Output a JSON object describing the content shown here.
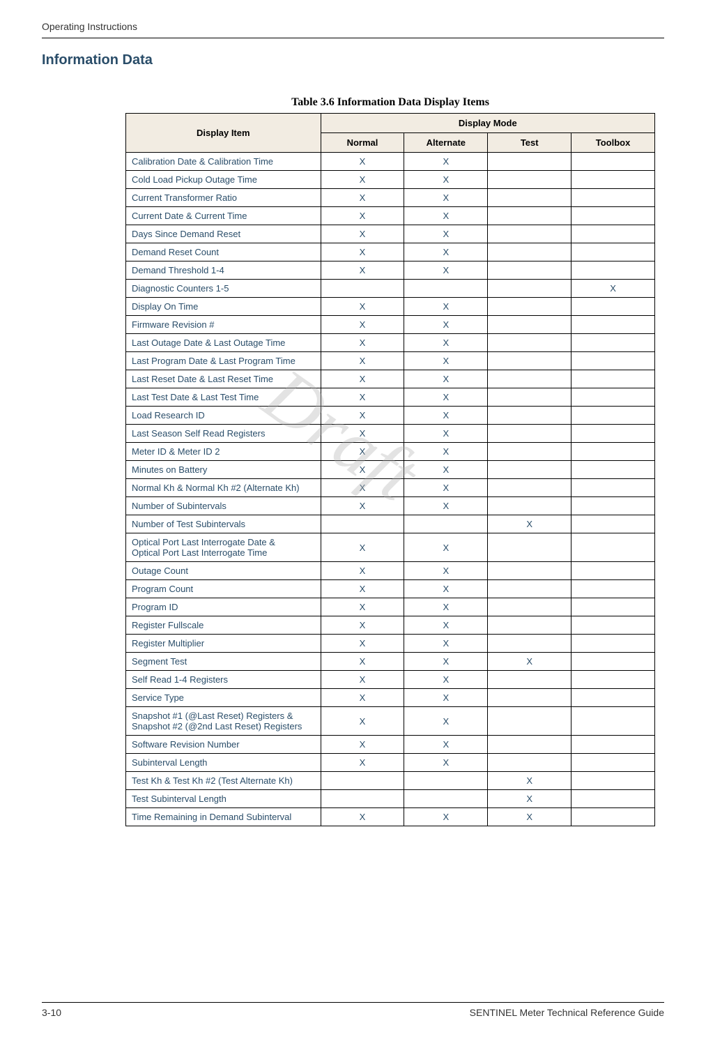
{
  "header": {
    "running_head": "Operating Instructions"
  },
  "section": {
    "heading": "Information Data"
  },
  "table": {
    "title": "Table 3.6 Information Data Display Items",
    "headers": {
      "item": "Display Item",
      "mode_group": "Display Mode",
      "modes": [
        "Normal",
        "Alternate",
        "Test",
        "Toolbox"
      ]
    },
    "rows": [
      {
        "label": "Calibration Date & Calibration Time",
        "marks": [
          "X",
          "X",
          "",
          ""
        ]
      },
      {
        "label": "Cold Load Pickup Outage Time",
        "marks": [
          "X",
          "X",
          "",
          ""
        ]
      },
      {
        "label": "Current Transformer Ratio",
        "marks": [
          "X",
          "X",
          "",
          ""
        ]
      },
      {
        "label": "Current Date & Current Time",
        "marks": [
          "X",
          "X",
          "",
          ""
        ]
      },
      {
        "label": "Days Since Demand Reset",
        "marks": [
          "X",
          "X",
          "",
          ""
        ]
      },
      {
        "label": "Demand Reset Count",
        "marks": [
          "X",
          "X",
          "",
          ""
        ]
      },
      {
        "label": "Demand Threshold 1-4",
        "marks": [
          "X",
          "X",
          "",
          ""
        ]
      },
      {
        "label": "Diagnostic Counters 1-5",
        "marks": [
          "",
          "",
          "",
          "X"
        ]
      },
      {
        "label": "Display On Time",
        "marks": [
          "X",
          "X",
          "",
          ""
        ]
      },
      {
        "label": "Firmware Revision #",
        "marks": [
          "X",
          "X",
          "",
          ""
        ]
      },
      {
        "label": "Last Outage Date & Last Outage Time",
        "marks": [
          "X",
          "X",
          "",
          ""
        ]
      },
      {
        "label": "Last Program Date & Last Program Time",
        "marks": [
          "X",
          "X",
          "",
          ""
        ]
      },
      {
        "label": "Last Reset Date & Last Reset Time",
        "marks": [
          "X",
          "X",
          "",
          ""
        ]
      },
      {
        "label": "Last Test Date & Last Test Time",
        "marks": [
          "X",
          "X",
          "",
          ""
        ]
      },
      {
        "label": "Load Research ID",
        "marks": [
          "X",
          "X",
          "",
          ""
        ]
      },
      {
        "label": "Last Season Self Read Registers",
        "marks": [
          "X",
          "X",
          "",
          ""
        ]
      },
      {
        "label": "Meter ID & Meter ID 2",
        "marks": [
          "X",
          "X",
          "",
          ""
        ]
      },
      {
        "label": "Minutes on Battery",
        "marks": [
          "X",
          "X",
          "",
          ""
        ]
      },
      {
        "label": "Normal Kh & Normal Kh #2 (Alternate Kh)",
        "marks": [
          "X",
          "X",
          "",
          ""
        ]
      },
      {
        "label": "Number of Subintervals",
        "marks": [
          "X",
          "X",
          "",
          ""
        ]
      },
      {
        "label": "Number of Test Subintervals",
        "marks": [
          "",
          "",
          "X",
          ""
        ]
      },
      {
        "label": "Optical Port Last Interrogate Date &\nOptical Port Last Interrogate Time",
        "marks": [
          "X",
          "X",
          "",
          ""
        ]
      },
      {
        "label": "Outage Count",
        "marks": [
          "X",
          "X",
          "",
          ""
        ]
      },
      {
        "label": "Program Count",
        "marks": [
          "X",
          "X",
          "",
          ""
        ]
      },
      {
        "label": "Program ID",
        "marks": [
          "X",
          "X",
          "",
          ""
        ]
      },
      {
        "label": "Register Fullscale",
        "marks": [
          "X",
          "X",
          "",
          ""
        ]
      },
      {
        "label": "Register Multiplier",
        "marks": [
          "X",
          "X",
          "",
          ""
        ]
      },
      {
        "label": "Segment Test",
        "marks": [
          "X",
          "X",
          "X",
          ""
        ]
      },
      {
        "label": "Self Read 1-4 Registers",
        "marks": [
          "X",
          "X",
          "",
          ""
        ]
      },
      {
        "label": "Service Type",
        "marks": [
          "X",
          "X",
          "",
          ""
        ]
      },
      {
        "label": "Snapshot #1 (@Last Reset) Registers &\nSnapshot #2 (@2nd Last Reset) Registers",
        "marks": [
          "X",
          "X",
          "",
          ""
        ]
      },
      {
        "label": "Software Revision Number",
        "marks": [
          "X",
          "X",
          "",
          ""
        ]
      },
      {
        "label": "Subinterval Length",
        "marks": [
          "X",
          "X",
          "",
          ""
        ]
      },
      {
        "label": "Test Kh & Test Kh #2 (Test Alternate Kh)",
        "marks": [
          "",
          "",
          "X",
          ""
        ]
      },
      {
        "label": "Test Subinterval Length",
        "marks": [
          "",
          "",
          "X",
          ""
        ]
      },
      {
        "label": "Time Remaining in Demand Subinterval",
        "marks": [
          "X",
          "X",
          "X",
          ""
        ]
      }
    ]
  },
  "watermark": {
    "text": "Draft"
  },
  "footer": {
    "page": "3-10",
    "doc_title": "SENTINEL Meter Technical Reference Guide"
  },
  "colors": {
    "header_bg": "#f2ece2",
    "cell_text": "#2a4d69",
    "border": "#000000"
  }
}
